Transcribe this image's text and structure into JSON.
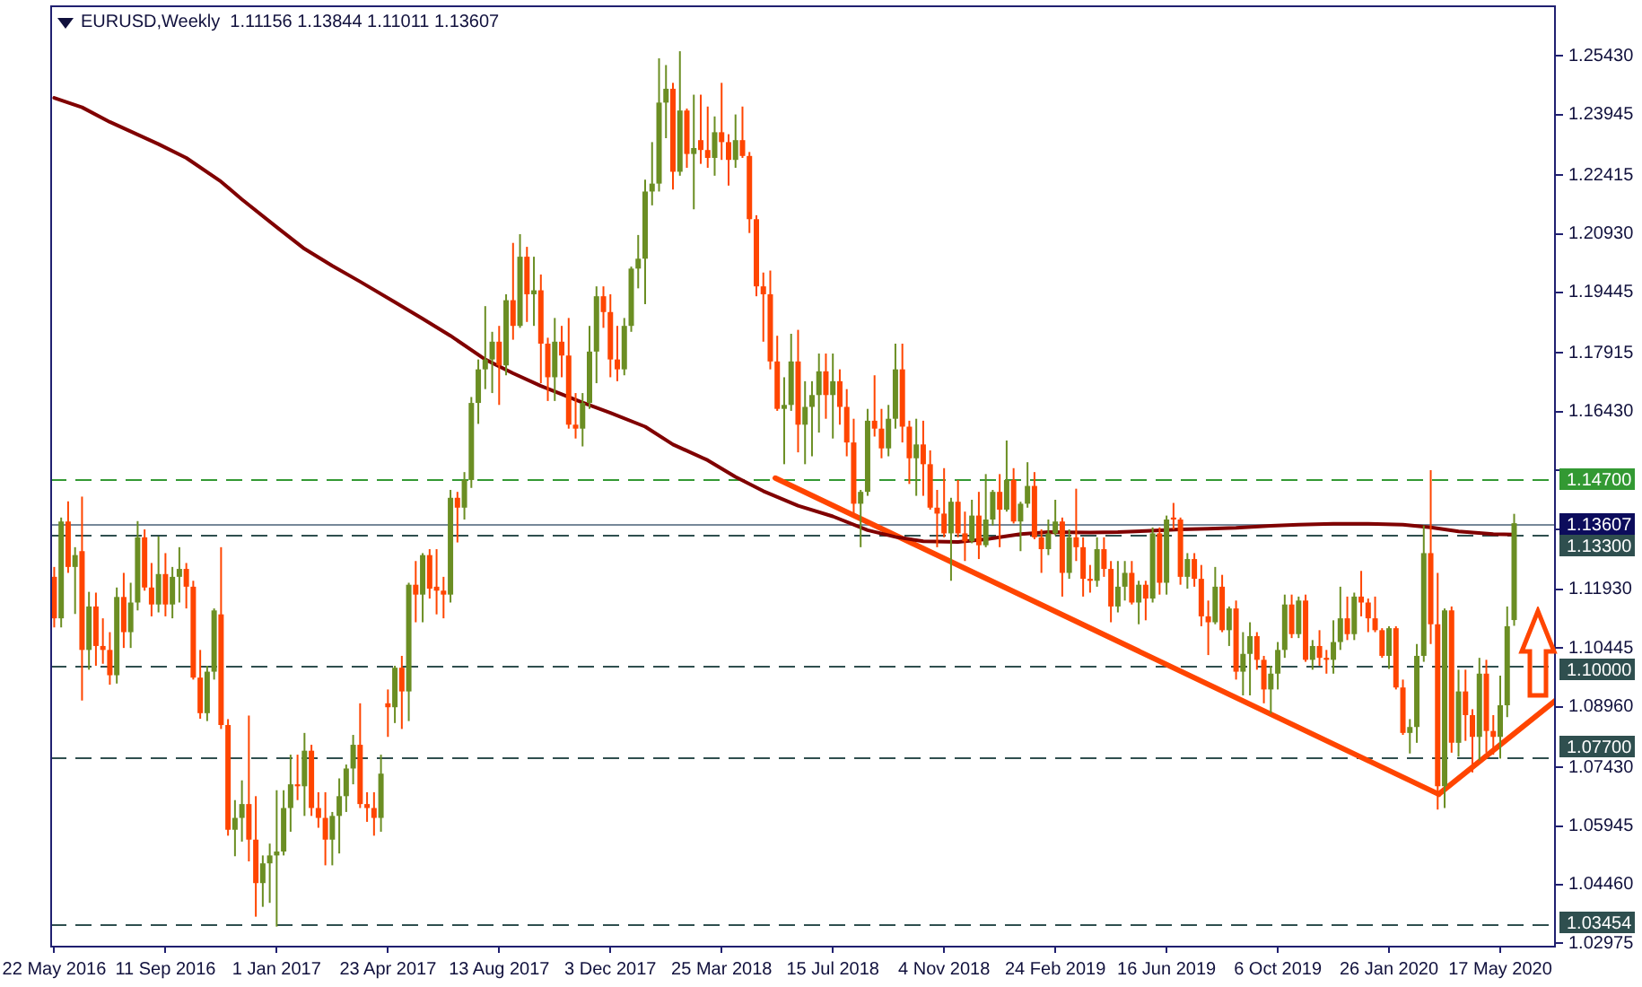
{
  "chart_data": {
    "type": "candlestick",
    "title": "EURUSD,Weekly  1.11156 1.13844 1.11011 1.13607",
    "x": [
      "2016-05-22",
      "2016-05-29",
      "2016-06-05",
      "2016-06-12",
      "2016-06-19",
      "2016-06-26",
      "2016-07-03",
      "2016-07-10",
      "2016-07-17",
      "2016-07-24",
      "2016-07-31",
      "2016-08-07",
      "2016-08-14",
      "2016-08-21",
      "2016-08-28",
      "2016-09-04",
      "2016-09-11",
      "2016-09-18",
      "2016-09-25",
      "2016-10-02",
      "2016-10-09",
      "2016-10-16",
      "2016-10-23",
      "2016-10-30",
      "2016-11-06",
      "2016-11-13",
      "2016-11-20",
      "2016-11-27",
      "2016-12-04",
      "2016-12-11",
      "2016-12-18",
      "2016-12-25",
      "2017-01-01",
      "2017-01-08",
      "2017-01-15",
      "2017-01-22",
      "2017-01-29",
      "2017-02-05",
      "2017-02-12",
      "2017-02-19",
      "2017-02-26",
      "2017-03-05",
      "2017-03-12",
      "2017-03-19",
      "2017-03-26",
      "2017-04-02",
      "2017-04-09",
      "2017-04-16",
      "2017-04-23",
      "2017-04-30",
      "2017-05-07",
      "2017-05-14",
      "2017-05-21",
      "2017-05-28",
      "2017-06-04",
      "2017-06-11",
      "2017-06-18",
      "2017-06-25",
      "2017-07-02",
      "2017-07-09",
      "2017-07-16",
      "2017-07-23",
      "2017-07-30",
      "2017-08-06",
      "2017-08-13",
      "2017-08-20",
      "2017-08-27",
      "2017-09-03",
      "2017-09-10",
      "2017-09-17",
      "2017-09-24",
      "2017-10-01",
      "2017-10-08",
      "2017-10-15",
      "2017-10-22",
      "2017-10-29",
      "2017-11-05",
      "2017-11-12",
      "2017-11-19",
      "2017-11-26",
      "2017-12-03",
      "2017-12-10",
      "2017-12-17",
      "2017-12-24",
      "2017-12-31",
      "2018-01-07",
      "2018-01-14",
      "2018-01-21",
      "2018-01-28",
      "2018-02-04",
      "2018-02-11",
      "2018-02-18",
      "2018-02-25",
      "2018-03-04",
      "2018-03-11",
      "2018-03-18",
      "2018-03-25",
      "2018-04-01",
      "2018-04-08",
      "2018-04-15",
      "2018-04-22",
      "2018-04-29",
      "2018-05-06",
      "2018-05-13",
      "2018-05-20",
      "2018-05-27",
      "2018-06-03",
      "2018-06-10",
      "2018-06-17",
      "2018-06-24",
      "2018-07-01",
      "2018-07-08",
      "2018-07-15",
      "2018-07-22",
      "2018-07-29",
      "2018-08-05",
      "2018-08-12",
      "2018-08-19",
      "2018-08-26",
      "2018-09-02",
      "2018-09-09",
      "2018-09-16",
      "2018-09-23",
      "2018-09-30",
      "2018-10-07",
      "2018-10-14",
      "2018-10-21",
      "2018-10-28",
      "2018-11-04",
      "2018-11-11",
      "2018-11-18",
      "2018-11-25",
      "2018-12-02",
      "2018-12-09",
      "2018-12-16",
      "2018-12-23",
      "2018-12-30",
      "2019-01-06",
      "2019-01-13",
      "2019-01-20",
      "2019-01-27",
      "2019-02-03",
      "2019-02-10",
      "2019-02-17",
      "2019-02-24",
      "2019-03-03",
      "2019-03-10",
      "2019-03-17",
      "2019-03-24",
      "2019-03-31",
      "2019-04-07",
      "2019-04-14",
      "2019-04-21",
      "2019-04-28",
      "2019-05-05",
      "2019-05-12",
      "2019-05-19",
      "2019-05-26",
      "2019-06-02",
      "2019-06-09",
      "2019-06-16",
      "2019-06-23",
      "2019-06-30",
      "2019-07-07",
      "2019-07-14",
      "2019-07-21",
      "2019-07-28",
      "2019-08-04",
      "2019-08-11",
      "2019-08-18",
      "2019-08-25",
      "2019-09-01",
      "2019-09-08",
      "2019-09-15",
      "2019-09-22",
      "2019-09-29",
      "2019-10-06",
      "2019-10-13",
      "2019-10-20",
      "2019-10-27",
      "2019-11-03",
      "2019-11-10",
      "2019-11-17",
      "2019-11-24",
      "2019-12-01",
      "2019-12-08",
      "2019-12-15",
      "2019-12-22",
      "2019-12-29",
      "2020-01-05",
      "2020-01-12",
      "2020-01-19",
      "2020-01-26",
      "2020-02-02",
      "2020-02-09",
      "2020-02-16",
      "2020-02-23",
      "2020-03-01",
      "2020-03-08",
      "2020-03-15",
      "2020-03-22",
      "2020-03-29",
      "2020-04-05",
      "2020-04-12",
      "2020-04-19",
      "2020-04-26",
      "2020-05-03",
      "2020-05-10",
      "2020-05-17",
      "2020-05-24",
      "2020-05-31"
    ],
    "ohlc": [
      [
        1.1225,
        1.125,
        1.1097,
        1.112
      ],
      [
        1.112,
        1.1375,
        1.1097,
        1.1365
      ],
      [
        1.1365,
        1.1416,
        1.1235,
        1.125
      ],
      [
        1.125,
        1.13,
        1.1131,
        1.128
      ],
      [
        1.129,
        1.1428,
        1.0912,
        1.104
      ],
      [
        1.104,
        1.1187,
        1.099,
        1.115
      ],
      [
        1.115,
        1.1185,
        1.1,
        1.105
      ],
      [
        1.105,
        1.112,
        1.1005,
        1.104
      ],
      [
        1.104,
        1.1085,
        1.0952,
        1.0976
      ],
      [
        1.0976,
        1.1198,
        1.0955,
        1.1174
      ],
      [
        1.1174,
        1.1235,
        1.1045,
        1.1085
      ],
      [
        1.1085,
        1.121,
        1.1045,
        1.116
      ],
      [
        1.116,
        1.1366,
        1.114,
        1.1325
      ],
      [
        1.1325,
        1.1345,
        1.119,
        1.1198
      ],
      [
        1.1198,
        1.126,
        1.1125,
        1.1155
      ],
      [
        1.1155,
        1.1327,
        1.1135,
        1.1232
      ],
      [
        1.1232,
        1.1285,
        1.1125,
        1.1155
      ],
      [
        1.1155,
        1.125,
        1.112,
        1.1225
      ],
      [
        1.1225,
        1.13,
        1.116,
        1.1245
      ],
      [
        1.1245,
        1.126,
        1.1145,
        1.12
      ],
      [
        1.12,
        1.1215,
        1.0965,
        1.097
      ],
      [
        1.097,
        1.104,
        1.0866,
        1.088
      ],
      [
        1.088,
        1.1,
        1.086,
        1.0985
      ],
      [
        1.0985,
        1.1145,
        1.0965,
        1.114
      ],
      [
        1.113,
        1.13,
        1.084,
        1.085
      ],
      [
        1.085,
        1.0865,
        1.057,
        1.0585
      ],
      [
        1.0585,
        1.066,
        1.0518,
        1.0615
      ],
      [
        1.0615,
        1.071,
        1.0555,
        1.065
      ],
      [
        1.065,
        1.0874,
        1.0505,
        1.056
      ],
      [
        1.056,
        1.067,
        1.0365,
        1.045
      ],
      [
        1.045,
        1.052,
        1.039,
        1.05
      ],
      [
        1.05,
        1.055,
        1.04,
        1.052
      ],
      [
        1.052,
        1.0685,
        1.034,
        1.053
      ],
      [
        1.053,
        1.0685,
        1.052,
        1.064
      ],
      [
        1.064,
        1.0775,
        1.058,
        1.07
      ],
      [
        1.07,
        1.0775,
        1.066,
        1.0695
      ],
      [
        1.0695,
        1.083,
        1.062,
        1.0785
      ],
      [
        1.0785,
        1.08,
        1.062,
        1.064
      ],
      [
        1.064,
        1.068,
        1.059,
        1.0615
      ],
      [
        1.0615,
        1.068,
        1.0495,
        1.056
      ],
      [
        1.056,
        1.063,
        1.0495,
        1.062
      ],
      [
        1.062,
        1.0715,
        1.0525,
        1.067
      ],
      [
        1.067,
        1.075,
        1.063,
        1.074
      ],
      [
        1.074,
        1.0825,
        1.07,
        1.08
      ],
      [
        1.08,
        1.0905,
        1.064,
        1.065
      ],
      [
        1.065,
        1.068,
        1.0605,
        1.064
      ],
      [
        1.064,
        1.068,
        1.057,
        1.0615
      ],
      [
        1.0615,
        1.0775,
        1.058,
        1.0727
      ],
      [
        1.0905,
        1.094,
        1.082,
        1.0895
      ],
      [
        1.0895,
        1.1,
        1.0855,
        1.0995
      ],
      [
        1.0995,
        1.1025,
        1.084,
        1.0935
      ],
      [
        1.0935,
        1.121,
        1.086,
        1.1205
      ],
      [
        1.1205,
        1.1265,
        1.111,
        1.118
      ],
      [
        1.118,
        1.1285,
        1.111,
        1.128
      ],
      [
        1.128,
        1.1295,
        1.117,
        1.1195
      ],
      [
        1.12,
        1.1295,
        1.113,
        1.119
      ],
      [
        1.119,
        1.1225,
        1.112,
        1.118
      ],
      [
        1.118,
        1.1445,
        1.116,
        1.1425
      ],
      [
        1.1425,
        1.144,
        1.1312,
        1.14
      ],
      [
        1.14,
        1.149,
        1.137,
        1.147
      ],
      [
        1.147,
        1.168,
        1.145,
        1.1665
      ],
      [
        1.1665,
        1.1775,
        1.1612,
        1.175
      ],
      [
        1.175,
        1.191,
        1.17,
        1.1775
      ],
      [
        1.1775,
        1.1845,
        1.169,
        1.182
      ],
      [
        1.182,
        1.186,
        1.166,
        1.176
      ],
      [
        1.176,
        1.194,
        1.1735,
        1.1925
      ],
      [
        1.1925,
        1.207,
        1.1825,
        1.186
      ],
      [
        1.186,
        1.2092,
        1.1855,
        1.2035
      ],
      [
        1.2035,
        1.206,
        1.187,
        1.194
      ],
      [
        1.194,
        1.2035,
        1.186,
        1.195
      ],
      [
        1.195,
        1.199,
        1.1715,
        1.1815
      ],
      [
        1.1815,
        1.183,
        1.167,
        1.173
      ],
      [
        1.173,
        1.188,
        1.167,
        1.182
      ],
      [
        1.182,
        1.186,
        1.173,
        1.1785
      ],
      [
        1.1785,
        1.188,
        1.16,
        1.161
      ],
      [
        1.161,
        1.169,
        1.1575,
        1.16
      ],
      [
        1.16,
        1.169,
        1.1555,
        1.1665
      ],
      [
        1.1665,
        1.186,
        1.165,
        1.1795
      ],
      [
        1.1795,
        1.196,
        1.1715,
        1.1935
      ],
      [
        1.1935,
        1.196,
        1.1855,
        1.1895
      ],
      [
        1.1895,
        1.194,
        1.173,
        1.1775
      ],
      [
        1.1775,
        1.186,
        1.172,
        1.175
      ],
      [
        1.175,
        1.188,
        1.1735,
        1.186
      ],
      [
        1.186,
        1.201,
        1.1845,
        1.2005
      ],
      [
        1.2005,
        1.209,
        1.1955,
        1.203
      ],
      [
        1.203,
        1.223,
        1.1915,
        1.22
      ],
      [
        1.22,
        1.2325,
        1.2165,
        1.222
      ],
      [
        1.222,
        1.2537,
        1.22,
        1.2425
      ],
      [
        1.2425,
        1.252,
        1.2335,
        1.246
      ],
      [
        1.246,
        1.2475,
        1.2205,
        1.225
      ],
      [
        1.225,
        1.2555,
        1.224,
        1.2405
      ],
      [
        1.2405,
        1.241,
        1.226,
        1.2295
      ],
      [
        1.2295,
        1.2445,
        1.2155,
        1.231
      ],
      [
        1.233,
        1.2445,
        1.227,
        1.2305
      ],
      [
        1.2305,
        1.2415,
        1.226,
        1.2285
      ],
      [
        1.2285,
        1.239,
        1.224,
        1.235
      ],
      [
        1.235,
        1.2475,
        1.228,
        1.2325
      ],
      [
        1.2325,
        1.2345,
        1.2215,
        1.228
      ],
      [
        1.228,
        1.2395,
        1.226,
        1.233
      ],
      [
        1.233,
        1.2415,
        1.2285,
        1.229
      ],
      [
        1.229,
        1.23,
        1.2095,
        1.213
      ],
      [
        1.213,
        1.214,
        1.1935,
        1.196
      ],
      [
        1.196,
        1.1995,
        1.182,
        1.194
      ],
      [
        1.194,
        1.2,
        1.175,
        1.177
      ],
      [
        1.177,
        1.1835,
        1.1645,
        1.165
      ],
      [
        1.165,
        1.173,
        1.151,
        1.166
      ],
      [
        1.166,
        1.184,
        1.1645,
        1.177
      ],
      [
        1.177,
        1.185,
        1.154,
        1.161
      ],
      [
        1.161,
        1.172,
        1.151,
        1.1655
      ],
      [
        1.1655,
        1.172,
        1.153,
        1.1685
      ],
      [
        1.1685,
        1.179,
        1.159,
        1.1745
      ],
      [
        1.1745,
        1.179,
        1.1625,
        1.1685
      ],
      [
        1.1685,
        1.179,
        1.1575,
        1.172
      ],
      [
        1.172,
        1.175,
        1.161,
        1.1655
      ],
      [
        1.1655,
        1.17,
        1.153,
        1.1565
      ],
      [
        1.1565,
        1.1625,
        1.1385,
        1.141
      ],
      [
        1.141,
        1.1445,
        1.13,
        1.144
      ],
      [
        1.144,
        1.165,
        1.143,
        1.162
      ],
      [
        1.162,
        1.1735,
        1.158,
        1.16
      ],
      [
        1.16,
        1.165,
        1.1525,
        1.155
      ],
      [
        1.155,
        1.166,
        1.153,
        1.1625
      ],
      [
        1.1625,
        1.1815,
        1.16,
        1.175
      ],
      [
        1.175,
        1.1815,
        1.1565,
        1.1605
      ],
      [
        1.1605,
        1.162,
        1.146,
        1.1525
      ],
      [
        1.1525,
        1.1625,
        1.143,
        1.156
      ],
      [
        1.156,
        1.162,
        1.143,
        1.151
      ],
      [
        1.151,
        1.1545,
        1.1395,
        1.14
      ],
      [
        1.14,
        1.1445,
        1.13,
        1.1385
      ],
      [
        1.1385,
        1.15,
        1.1325,
        1.1335
      ],
      [
        1.1335,
        1.1425,
        1.1215,
        1.1415
      ],
      [
        1.1415,
        1.147,
        1.1325,
        1.1335
      ],
      [
        1.1335,
        1.139,
        1.1265,
        1.1315
      ],
      [
        1.1315,
        1.142,
        1.131,
        1.138
      ],
      [
        1.138,
        1.144,
        1.127,
        1.1305
      ],
      [
        1.1305,
        1.1485,
        1.13,
        1.137
      ],
      [
        1.137,
        1.1445,
        1.1355,
        1.144
      ],
      [
        1.144,
        1.1485,
        1.13,
        1.1395
      ],
      [
        1.1395,
        1.157,
        1.139,
        1.147
      ],
      [
        1.147,
        1.15,
        1.136,
        1.1365
      ],
      [
        1.1365,
        1.1415,
        1.129,
        1.141
      ],
      [
        1.141,
        1.1515,
        1.14,
        1.1455
      ],
      [
        1.1455,
        1.149,
        1.132,
        1.1325
      ],
      [
        1.1325,
        1.1345,
        1.1235,
        1.1295
      ],
      [
        1.1295,
        1.137,
        1.128,
        1.1335
      ],
      [
        1.1335,
        1.142,
        1.133,
        1.1365
      ],
      [
        1.1365,
        1.1375,
        1.1175,
        1.1235
      ],
      [
        1.1235,
        1.1345,
        1.122,
        1.1325
      ],
      [
        1.1325,
        1.1448,
        1.1265,
        1.13
      ],
      [
        1.13,
        1.1325,
        1.1175,
        1.122
      ],
      [
        1.122,
        1.1255,
        1.1185,
        1.1215
      ],
      [
        1.1215,
        1.1325,
        1.12,
        1.1295
      ],
      [
        1.1295,
        1.1325,
        1.1225,
        1.1245
      ],
      [
        1.1245,
        1.1265,
        1.111,
        1.115
      ],
      [
        1.115,
        1.1265,
        1.1135,
        1.12
      ],
      [
        1.12,
        1.1265,
        1.1165,
        1.1235
      ],
      [
        1.1235,
        1.1265,
        1.1155,
        1.116
      ],
      [
        1.116,
        1.1215,
        1.1105,
        1.1205
      ],
      [
        1.1205,
        1.1215,
        1.1115,
        1.117
      ],
      [
        1.117,
        1.135,
        1.116,
        1.1335
      ],
      [
        1.1335,
        1.135,
        1.118,
        1.121
      ],
      [
        1.121,
        1.138,
        1.118,
        1.137
      ],
      [
        1.1375,
        1.1412,
        1.1345,
        1.137
      ],
      [
        1.137,
        1.1375,
        1.1205,
        1.1225
      ],
      [
        1.1225,
        1.1285,
        1.1195,
        1.127
      ],
      [
        1.127,
        1.1285,
        1.12,
        1.122
      ],
      [
        1.122,
        1.1255,
        1.11,
        1.1125
      ],
      [
        1.1125,
        1.1165,
        1.1027,
        1.111
      ],
      [
        1.111,
        1.125,
        1.1105,
        1.12
      ],
      [
        1.12,
        1.123,
        1.1085,
        1.109
      ],
      [
        1.109,
        1.115,
        1.105,
        1.1145
      ],
      [
        1.1145,
        1.1165,
        1.0965,
        1.0985
      ],
      [
        1.0985,
        1.1085,
        1.0925,
        1.103
      ],
      [
        1.103,
        1.111,
        1.0925,
        1.1075
      ],
      [
        1.1075,
        1.1085,
        1.099,
        1.1015
      ],
      [
        1.1015,
        1.1025,
        1.0905,
        1.094
      ],
      [
        1.094,
        1.1,
        1.0879,
        1.098
      ],
      [
        1.098,
        1.106,
        1.094,
        1.104
      ],
      [
        1.104,
        1.118,
        1.102,
        1.1155
      ],
      [
        1.1155,
        1.118,
        1.107,
        1.108
      ],
      [
        1.108,
        1.1175,
        1.107,
        1.1165
      ],
      [
        1.1165,
        1.118,
        1.101,
        1.1015
      ],
      [
        1.1015,
        1.1065,
        1.099,
        1.105
      ],
      [
        1.105,
        1.109,
        1.1,
        1.102
      ],
      [
        1.102,
        1.104,
        1.098,
        1.1015
      ],
      [
        1.1015,
        1.1115,
        1.098,
        1.106
      ],
      [
        1.106,
        1.12,
        1.104,
        1.112
      ],
      [
        1.112,
        1.1175,
        1.1065,
        1.108
      ],
      [
        1.108,
        1.1185,
        1.1065,
        1.1175
      ],
      [
        1.1175,
        1.124,
        1.1125,
        1.116
      ],
      [
        1.116,
        1.117,
        1.1085,
        1.112
      ],
      [
        1.112,
        1.1175,
        1.1085,
        1.109
      ],
      [
        1.109,
        1.1095,
        1.102,
        1.1025
      ],
      [
        1.1025,
        1.11,
        1.0992,
        1.1095
      ],
      [
        1.1095,
        1.11,
        1.094,
        1.0945
      ],
      [
        1.0945,
        1.0965,
        1.0825,
        1.083
      ],
      [
        1.083,
        1.0865,
        1.0778,
        1.0845
      ],
      [
        1.0845,
        1.1055,
        1.0805,
        1.1025
      ],
      [
        1.1025,
        1.1355,
        1.101,
        1.1285
      ],
      [
        1.1285,
        1.1495,
        1.1055,
        1.1105
      ],
      [
        1.1105,
        1.1235,
        1.0636,
        1.0695
      ],
      [
        1.0695,
        1.1145,
        1.064,
        1.114
      ],
      [
        1.114,
        1.115,
        1.078,
        1.0805
      ],
      [
        1.0805,
        1.099,
        1.077,
        1.0935
      ],
      [
        1.0935,
        1.099,
        1.081,
        1.0875
      ],
      [
        1.0875,
        1.089,
        1.073,
        1.082
      ],
      [
        1.082,
        1.102,
        1.076,
        1.098
      ],
      [
        1.098,
        1.1015,
        1.078,
        1.0835
      ],
      [
        1.0835,
        1.0875,
        1.0775,
        1.082
      ],
      [
        1.082,
        1.0975,
        1.0765,
        1.09
      ],
      [
        1.09,
        1.115,
        1.087,
        1.11
      ],
      [
        1.11156,
        1.13844,
        1.11011,
        1.13607
      ]
    ],
    "colors": [
      "#ff4500",
      "#6b8e23",
      "#ff4500",
      "#6b8e23",
      "#ff4500",
      "#6b8e23",
      "#ff4500",
      "#ff4500",
      "#ff4500",
      "#6b8e23",
      "#ff4500",
      "#6b8e23",
      "#6b8e23",
      "#ff4500",
      "#ff4500",
      "#6b8e23",
      "#ff4500",
      "#6b8e23",
      "#6b8e23",
      "#ff4500",
      "#ff4500",
      "#ff4500",
      "#6b8e23",
      "#6b8e23",
      "#ff4500",
      "#ff4500",
      "#6b8e23",
      "#6b8e23",
      "#ff4500",
      "#ff4500",
      "#6b8e23",
      "#6b8e23",
      "#6b8e23",
      "#6b8e23",
      "#6b8e23",
      "#ff4500",
      "#6b8e23",
      "#ff4500",
      "#ff4500",
      "#ff4500",
      "#6b8e23",
      "#6b8e23",
      "#6b8e23",
      "#6b8e23",
      "#ff4500",
      "#ff4500",
      "#ff4500",
      "#6b8e23",
      "#ff4500",
      "#6b8e23",
      "#ff4500",
      "#6b8e23",
      "#ff4500",
      "#6b8e23",
      "#ff4500",
      "#ff4500",
      "#ff4500",
      "#6b8e23",
      "#ff4500",
      "#6b8e23",
      "#6b8e23",
      "#6b8e23",
      "#6b8e23",
      "#6b8e23",
      "#ff4500",
      "#6b8e23",
      "#ff4500",
      "#6b8e23",
      "#ff4500",
      "#6b8e23",
      "#ff4500",
      "#ff4500",
      "#6b8e23",
      "#ff4500",
      "#ff4500",
      "#ff4500",
      "#6b8e23",
      "#6b8e23",
      "#6b8e23",
      "#ff4500",
      "#ff4500",
      "#ff4500",
      "#6b8e23",
      "#6b8e23",
      "#6b8e23",
      "#6b8e23",
      "#6b8e23",
      "#6b8e23",
      "#6b8e23",
      "#ff4500",
      "#6b8e23",
      "#ff4500",
      "#6b8e23",
      "#ff4500",
      "#ff4500",
      "#6b8e23",
      "#ff4500",
      "#ff4500",
      "#6b8e23",
      "#ff4500",
      "#ff4500",
      "#ff4500",
      "#ff4500",
      "#ff4500",
      "#ff4500",
      "#6b8e23",
      "#6b8e23",
      "#ff4500",
      "#6b8e23",
      "#6b8e23",
      "#6b8e23",
      "#ff4500",
      "#6b8e23",
      "#ff4500",
      "#ff4500",
      "#ff4500",
      "#6b8e23",
      "#6b8e23",
      "#ff4500",
      "#ff4500",
      "#6b8e23",
      "#6b8e23",
      "#ff4500",
      "#ff4500",
      "#6b8e23",
      "#ff4500",
      "#ff4500",
      "#ff4500",
      "#ff4500",
      "#6b8e23",
      "#ff4500",
      "#ff4500",
      "#6b8e23",
      "#ff4500",
      "#6b8e23",
      "#6b8e23",
      "#ff4500",
      "#6b8e23",
      "#ff4500",
      "#6b8e23",
      "#6b8e23",
      "#ff4500",
      "#ff4500",
      "#6b8e23",
      "#6b8e23",
      "#ff4500",
      "#6b8e23",
      "#ff4500",
      "#ff4500",
      "#ff4500",
      "#6b8e23",
      "#ff4500",
      "#ff4500",
      "#6b8e23",
      "#6b8e23",
      "#ff4500",
      "#6b8e23",
      "#ff4500",
      "#6b8e23",
      "#ff4500",
      "#6b8e23",
      "#ff4500",
      "#ff4500",
      "#6b8e23",
      "#ff4500",
      "#ff4500",
      "#ff4500",
      "#6b8e23",
      "#ff4500",
      "#6b8e23",
      "#ff4500",
      "#6b8e23",
      "#6b8e23",
      "#ff4500",
      "#ff4500",
      "#6b8e23",
      "#6b8e23",
      "#6b8e23",
      "#ff4500",
      "#6b8e23",
      "#ff4500",
      "#6b8e23",
      "#ff4500",
      "#ff4500",
      "#6b8e23",
      "#6b8e23",
      "#ff4500",
      "#6b8e23",
      "#ff4500",
      "#ff4500",
      "#ff4500",
      "#ff4500",
      "#6b8e23",
      "#ff4500",
      "#ff4500",
      "#6b8e23",
      "#6b8e23",
      "#6b8e23",
      "#ff4500",
      "#ff4500",
      "#6b8e23",
      "#ff4500",
      "#6b8e23",
      "#ff4500",
      "#ff4500",
      "#6b8e23",
      "#ff4500",
      "#ff4500",
      "#6b8e23",
      "#6b8e23",
      "#6b8e23"
    ],
    "series": [
      {
        "type": "line",
        "color": "#800000",
        "x": [
          "2016-05-22",
          "2016-06-19",
          "2016-07-17",
          "2016-09-04",
          "2016-10-02",
          "2016-11-06",
          "2016-11-27",
          "2017-01-01",
          "2017-01-29",
          "2017-02-26",
          "2017-03-26",
          "2017-04-30",
          "2017-05-28",
          "2017-06-25",
          "2017-07-30",
          "2017-08-27",
          "2017-09-24",
          "2017-11-05",
          "2017-12-03",
          "2018-01-07",
          "2018-02-04",
          "2018-03-11",
          "2018-04-08",
          "2018-05-06",
          "2018-06-10",
          "2018-07-15",
          "2018-08-19",
          "2018-09-16",
          "2018-10-14",
          "2018-11-18",
          "2018-12-16",
          "2019-01-20",
          "2019-02-17",
          "2019-03-31",
          "2019-04-28",
          "2019-05-26",
          "2019-06-30",
          "2019-07-28",
          "2019-08-25",
          "2019-09-29",
          "2019-10-27",
          "2019-12-01",
          "2020-01-05",
          "2020-02-09",
          "2020-03-08",
          "2020-04-05",
          "2020-05-10",
          "2020-05-31"
        ],
        "values": [
          1.2437,
          1.2413,
          1.2376,
          1.232,
          1.2285,
          1.2225,
          1.218,
          1.211,
          1.2055,
          1.2012,
          1.1972,
          1.192,
          1.1878,
          1.1835,
          1.1775,
          1.174,
          1.1708,
          1.1666,
          1.164,
          1.1605,
          1.156,
          1.152,
          1.1478,
          1.1442,
          1.1405,
          1.1378,
          1.1343,
          1.1326,
          1.1315,
          1.1313,
          1.132,
          1.1333,
          1.1338,
          1.1337,
          1.1338,
          1.1341,
          1.1345,
          1.1347,
          1.1349,
          1.1354,
          1.1357,
          1.1359,
          1.1359,
          1.1357,
          1.135,
          1.134,
          1.1333,
          1.1332
        ]
      },
      {
        "type": "line",
        "color": "#ff4500",
        "x": [
          "2018-05-18",
          "2020-03-16"
        ],
        "values": [
          1.1475,
          1.0675
        ]
      },
      {
        "type": "line",
        "color": "#ff4500",
        "x": [
          "2020-03-16",
          "2020-07-12"
        ],
        "values": [
          1.0675,
          1.0913
        ]
      }
    ],
    "xlim": [
      "2016-05-18",
      "2020-07-12"
    ],
    "xticks": [
      {
        "value": "2016-05-22",
        "label": "22 May 2016"
      },
      {
        "value": "2016-09-11",
        "label": "11 Sep 2016"
      },
      {
        "value": "2017-01-01",
        "label": "1 Jan 2017"
      },
      {
        "value": "2017-04-23",
        "label": "23 Apr 2017"
      },
      {
        "value": "2017-08-13",
        "label": "13 Aug 2017"
      },
      {
        "value": "2017-12-03",
        "label": "3 Dec 2017"
      },
      {
        "value": "2018-03-25",
        "label": "25 Mar 2018"
      },
      {
        "value": "2018-07-15",
        "label": "15 Jul 2018"
      },
      {
        "value": "2018-11-04",
        "label": "4 Nov 2018"
      },
      {
        "value": "2019-02-24",
        "label": "24 Feb 2019"
      },
      {
        "value": "2019-06-16",
        "label": "16 Jun 2019"
      },
      {
        "value": "2019-10-06",
        "label": "6 Oct 2019"
      },
      {
        "value": "2020-01-26",
        "label": "26 Jan 2020"
      },
      {
        "value": "2020-05-17",
        "label": "17 May 2020"
      }
    ],
    "ylim": [
      1.0287,
      1.2671
    ],
    "yticks": [
      {
        "value": 1.2543,
        "label": "1.25430"
      },
      1.23945,
      1.22415,
      {
        "value": 1.2093,
        "label": "1.20930"
      },
      1.19445,
      1.17915,
      {
        "value": 1.1643,
        "label": "1.16430"
      },
      {
        "value": 1.14945,
        "label": null
      },
      {
        "value": 1.1346,
        "label": null
      },
      {
        "value": 1.1193,
        "label": "1.11930"
      },
      1.10445,
      {
        "value": 1.0896,
        "label": "1.08960"
      },
      {
        "value": 1.0743,
        "label": "1.07430"
      },
      1.05945,
      {
        "value": 1.0446,
        "label": "1.04460"
      },
      1.02975
    ],
    "ref_lines": [
      {
        "axis": "y",
        "value": 1.147,
        "label": "1.14700",
        "color": "#339933",
        "line_style": "dashed"
      },
      {
        "axis": "y",
        "value": 1.13607,
        "label": "1.13607",
        "color": "#778899",
        "line_style": "solid"
      },
      {
        "axis": "y",
        "value": 1.133,
        "label": "1.13300",
        "color": "#2f4f4f",
        "line_style": "dashed"
      },
      {
        "axis": "y",
        "value": 1.1,
        "label": "1.10000",
        "color": "#2f4f4f",
        "line_style": "dashed"
      },
      {
        "axis": "y",
        "value": 1.077,
        "label": "1.07700",
        "color": "#2f4f4f",
        "line_style": "dashed"
      },
      {
        "axis": "y",
        "value": 1.03454,
        "label": "1.03454",
        "color": "#2f4f4f",
        "line_style": "dashed"
      }
    ]
  }
}
